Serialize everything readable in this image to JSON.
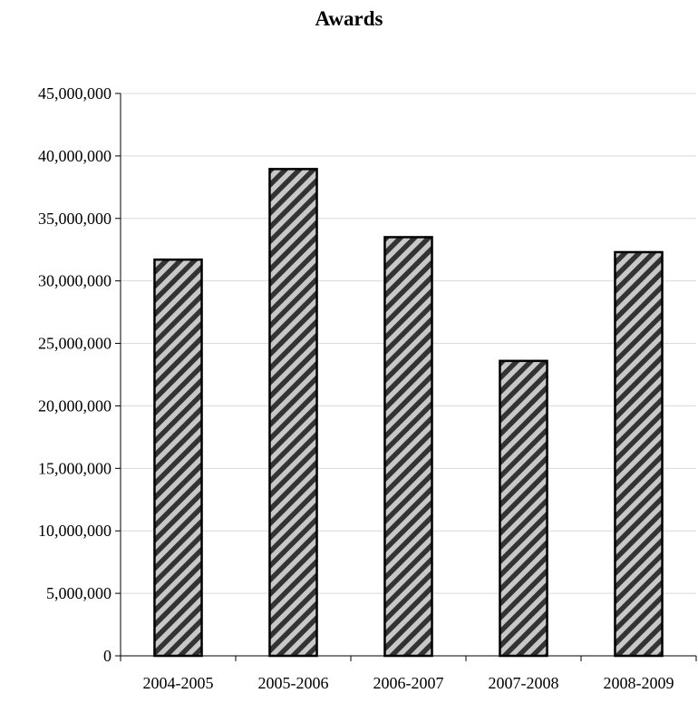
{
  "chart_data": {
    "type": "bar",
    "title": "Awards",
    "xlabel": "",
    "ylabel": "",
    "categories": [
      "2004-2005",
      "2005-2006",
      "2006-2007",
      "2007-2008",
      "2008-2009"
    ],
    "values": [
      31700000,
      38950000,
      33500000,
      23600000,
      32300000
    ],
    "ylim": [
      0,
      45000000
    ],
    "yticks": [
      0,
      5000000,
      10000000,
      15000000,
      20000000,
      25000000,
      30000000,
      35000000,
      40000000,
      45000000
    ],
    "ytick_labels": [
      "0",
      "5,000,000",
      "10,000,000",
      "15,000,000",
      "20,000,000",
      "25,000,000",
      "30,000,000",
      "35,000,000",
      "40,000,000",
      "45,000,000"
    ],
    "grid": true,
    "legend": "none",
    "bar_fill": "diagonal-stripes",
    "colors": {
      "stripe_dark": "#333333",
      "stripe_light": "#c8c8c8",
      "outline": "#000000",
      "grid": "#d9d9d9"
    }
  }
}
